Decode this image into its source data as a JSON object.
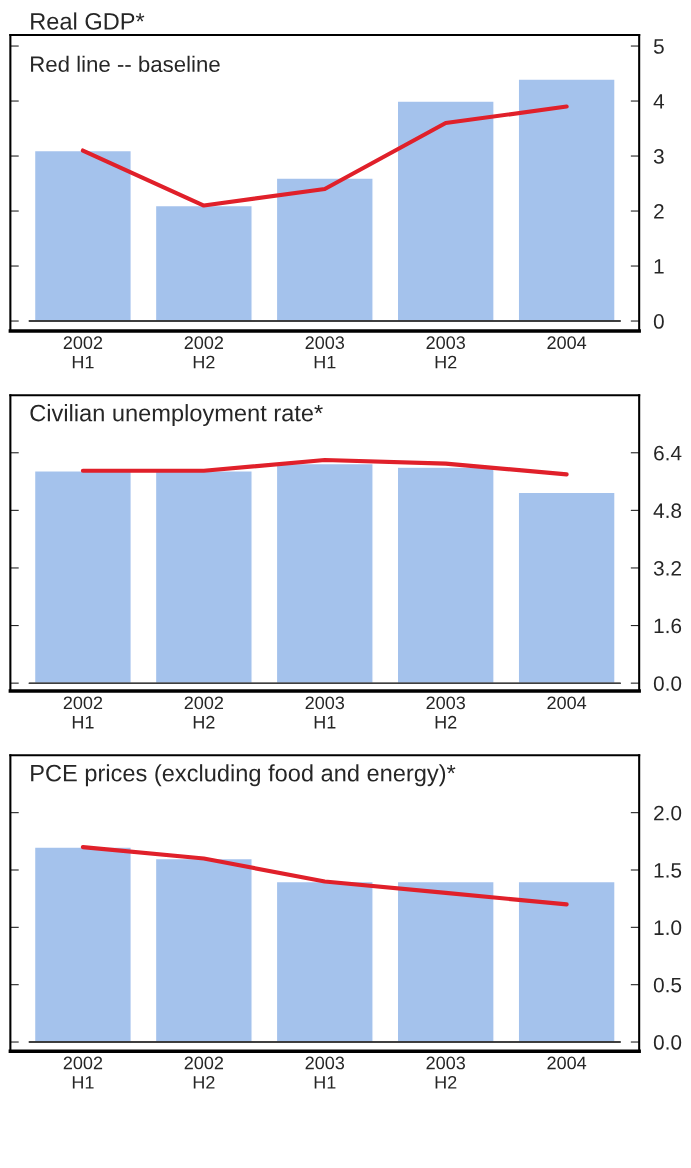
{
  "chart_data": [
    {
      "type": "bar",
      "title": "Real GDP*",
      "annotations": [
        "Red line -- baseline"
      ],
      "categories": [
        "2002\nH1",
        "2002\nH2",
        "2003\nH1",
        "2003\nH2",
        "2004"
      ],
      "series": [
        {
          "color": "#a4c2ec",
          "values": [
            3.1,
            2.1,
            2.6,
            4.0,
            4.4
          ]
        },
        {
          "type": "line",
          "color": "#e0202a",
          "values": [
            3.1,
            2.1,
            2.4,
            3.6,
            3.9
          ]
        }
      ],
      "ylim": [
        -0.18,
        5.2
      ],
      "yticks": [
        0,
        1,
        2,
        3,
        4,
        5
      ],
      "ref_lines": [
        {
          "axis": "y",
          "value": 0,
          "color": "#000000"
        }
      ]
    },
    {
      "type": "bar",
      "title": "Civilian unemployment rate*",
      "categories": [
        "2002\nH1",
        "2002\nH2",
        "2003\nH1",
        "2003\nH2",
        "2004"
      ],
      "series": [
        {
          "color": "#a4c2ec",
          "values": [
            5.9,
            5.9,
            6.1,
            6.0,
            5.3
          ]
        },
        {
          "type": "line",
          "color": "#e0202a",
          "values": [
            5.9,
            5.9,
            6.2,
            6.1,
            5.8
          ]
        }
      ],
      "ylim": [
        -0.22,
        8.0
      ],
      "yticks": [
        {
          "value": 0,
          "label": "0.0"
        },
        1.6,
        3.2,
        4.8,
        6.4
      ],
      "ref_lines": [
        {
          "axis": "y",
          "value": 0,
          "color": "#000000"
        }
      ]
    },
    {
      "type": "bar",
      "title": "PCE prices (excluding food and energy)*",
      "categories": [
        "2002\nH1",
        "2002\nH2",
        "2003\nH1",
        "2003\nH2",
        "2004"
      ],
      "series": [
        {
          "color": "#a4c2ec",
          "values": [
            1.7,
            1.6,
            1.4,
            1.4,
            1.4
          ]
        },
        {
          "type": "line",
          "color": "#e0202a",
          "values": [
            1.7,
            1.6,
            1.4,
            1.3,
            1.2
          ]
        }
      ],
      "ylim": [
        -0.08,
        2.5
      ],
      "yticks": [
        {
          "value": 0,
          "label": "0.0"
        },
        0.5,
        {
          "value": 1,
          "label": "1.0"
        },
        1.5,
        {
          "value": 2,
          "label": "2.0"
        }
      ],
      "ref_lines": [
        {
          "axis": "y",
          "value": 0,
          "color": "#000000"
        }
      ]
    }
  ]
}
